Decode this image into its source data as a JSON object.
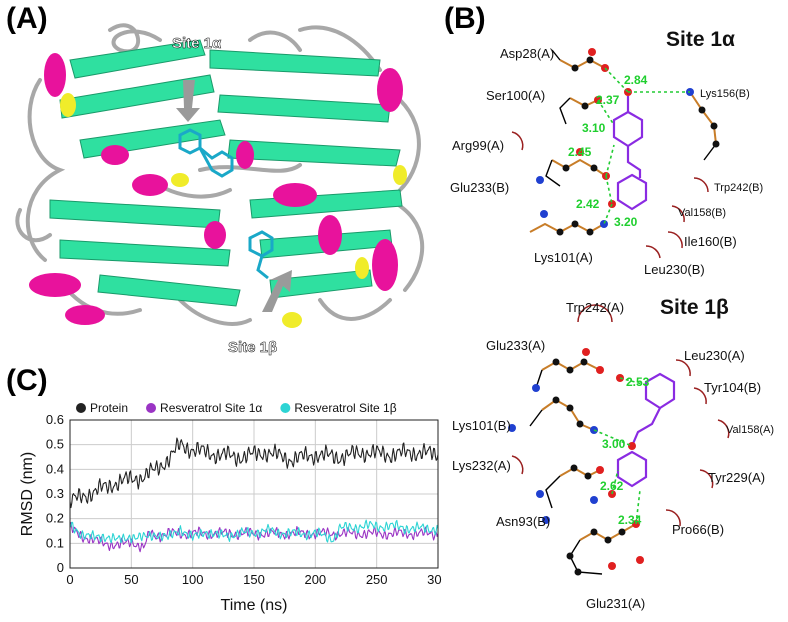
{
  "panels": {
    "a_label": "(A)",
    "b_label": "(B)",
    "c_label": "(C)"
  },
  "panel_a": {
    "site1a": "Site 1α",
    "site1b": "Site 1β"
  },
  "panel_b": {
    "site1a": {
      "title": "Site 1α",
      "residues": [
        "Asp28(A)",
        "Ser100(A)",
        "Lys156(B)",
        "Arg99(A)",
        "Glu233(B)",
        "Trp242(B)",
        "Val158(B)",
        "Ile160(B)",
        "Lys101(A)",
        "Leu230(B)"
      ],
      "hbonds": [
        "2.84",
        "2.37",
        "3.10",
        "2.45",
        "2.42",
        "3.20"
      ]
    },
    "site1b": {
      "title": "Site 1β",
      "residues": [
        "Trp242(A)",
        "Glu233(A)",
        "Leu230(A)",
        "Tyr104(B)",
        "Lys101(B)",
        "Val158(A)",
        "Lys232(A)",
        "Tyr229(A)",
        "Asn93(B)",
        "Pro66(B)",
        "Glu231(A)"
      ],
      "hbonds": [
        "2.53",
        "3.00",
        "2.62",
        "2.34"
      ]
    }
  },
  "chart_data": {
    "type": "line",
    "xlabel": "Time (ns)",
    "ylabel": "RMSD (nm)",
    "xlim": [
      0,
      300
    ],
    "ylim": [
      0,
      0.6
    ],
    "xticks": [
      "0",
      "50",
      "100",
      "150",
      "200",
      "250",
      "300"
    ],
    "yticks": [
      "0",
      "0.1",
      "0.2",
      "0.3",
      "0.4",
      "0.5",
      "0.6"
    ],
    "grid": true,
    "legend": "top",
    "series": [
      {
        "name": "Protein",
        "color": "#222222",
        "x": [
          0,
          10,
          20,
          30,
          40,
          50,
          60,
          70,
          80,
          90,
          100,
          120,
          140,
          160,
          180,
          200,
          220,
          240,
          260,
          280,
          300
        ],
        "y": [
          0.27,
          0.29,
          0.31,
          0.33,
          0.35,
          0.36,
          0.37,
          0.4,
          0.44,
          0.5,
          0.48,
          0.46,
          0.45,
          0.47,
          0.44,
          0.46,
          0.45,
          0.47,
          0.46,
          0.47,
          0.46
        ]
      },
      {
        "name": "Resveratrol Site 1α",
        "color": "#9a34c4",
        "x": [
          0,
          10,
          20,
          30,
          40,
          50,
          60,
          65,
          70,
          80,
          100,
          150,
          200,
          250,
          300
        ],
        "y": [
          0.16,
          0.13,
          0.11,
          0.1,
          0.09,
          0.11,
          0.08,
          0.14,
          0.13,
          0.14,
          0.14,
          0.14,
          0.14,
          0.14,
          0.14
        ]
      },
      {
        "name": "Resveratrol Site 1β",
        "color": "#2dd4d4",
        "x": [
          0,
          10,
          20,
          30,
          40,
          50,
          60,
          70,
          80,
          90,
          100,
          110,
          120,
          140,
          160,
          180,
          200,
          215,
          220,
          240,
          260,
          280,
          300
        ],
        "y": [
          0.17,
          0.14,
          0.12,
          0.13,
          0.11,
          0.13,
          0.12,
          0.14,
          0.12,
          0.16,
          0.12,
          0.15,
          0.13,
          0.14,
          0.15,
          0.14,
          0.14,
          0.12,
          0.16,
          0.17,
          0.17,
          0.16,
          0.16
        ]
      }
    ]
  }
}
